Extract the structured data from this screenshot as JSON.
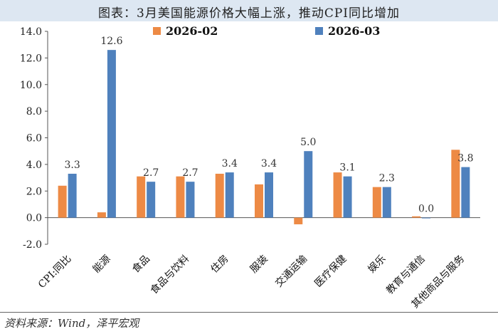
{
  "title": "图表：3月美国能源价格大幅上涨，推动CPI同比增加",
  "source": "资料来源：Wind，泽平宏观",
  "colors": {
    "series1": "#ed8a45",
    "series2": "#4f81bd",
    "title_bg": "#dde7f2"
  },
  "chart_data": {
    "type": "bar",
    "categories": [
      "CPI:同比",
      "能源",
      "食品",
      "食品与饮料",
      "住房",
      "服装",
      "交通运输",
      "医疗保健",
      "娱乐",
      "教育与通信",
      "其他商品与服务"
    ],
    "series": [
      {
        "name": "2026-02",
        "values": [
          2.4,
          0.4,
          3.1,
          3.1,
          3.3,
          2.5,
          -0.5,
          3.4,
          2.3,
          0.1,
          5.1
        ]
      },
      {
        "name": "2026-03",
        "values": [
          3.3,
          12.6,
          2.7,
          2.7,
          3.4,
          3.4,
          5.0,
          3.1,
          2.3,
          0.0,
          3.8
        ]
      }
    ],
    "data_labels": [
      "3.3",
      "12.6",
      "2.7",
      "2.7",
      "3.4",
      "3.4",
      "5.0",
      "3.1",
      "2.3",
      "0.0",
      "3.8"
    ],
    "yticks": [
      "14.0",
      "12.0",
      "10.0",
      "8.0",
      "6.0",
      "4.0",
      "2.0",
      "0.0",
      "-2.0"
    ],
    "ylim": [
      -2,
      14
    ],
    "legend_position": "top"
  }
}
